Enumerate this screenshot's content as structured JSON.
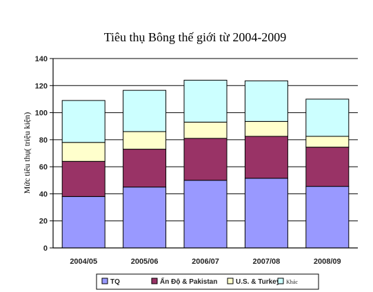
{
  "chart_data": {
    "type": "bar",
    "stacked": true,
    "title": "Tiêu thụ Bông thế giới từ 2004-2009",
    "ylabel": "Mức tiêu thụ( triệu kiện)",
    "xlabel": "",
    "ylim": [
      0,
      140
    ],
    "yticks": [
      0,
      20,
      40,
      60,
      80,
      100,
      120,
      140
    ],
    "grid": true,
    "legend_position": "bottom",
    "categories": [
      "2004/05",
      "2005/06",
      "2006/07",
      "2007/08",
      "2008/09"
    ],
    "series": [
      {
        "name": "TQ",
        "color": "#9999ff",
        "values": [
          38,
          45,
          50,
          51.5,
          45.5
        ]
      },
      {
        "name": "Ấn Độ & Pakistan",
        "color": "#993366",
        "values": [
          26,
          28,
          31,
          31,
          29
        ]
      },
      {
        "name": "U.S. & Turkey",
        "color": "#ffffcc",
        "values": [
          14,
          13,
          12,
          11,
          8
        ]
      },
      {
        "name": "Khác",
        "color": "#ccffff",
        "values": [
          31,
          30.5,
          31,
          30,
          27.5
        ]
      }
    ]
  }
}
